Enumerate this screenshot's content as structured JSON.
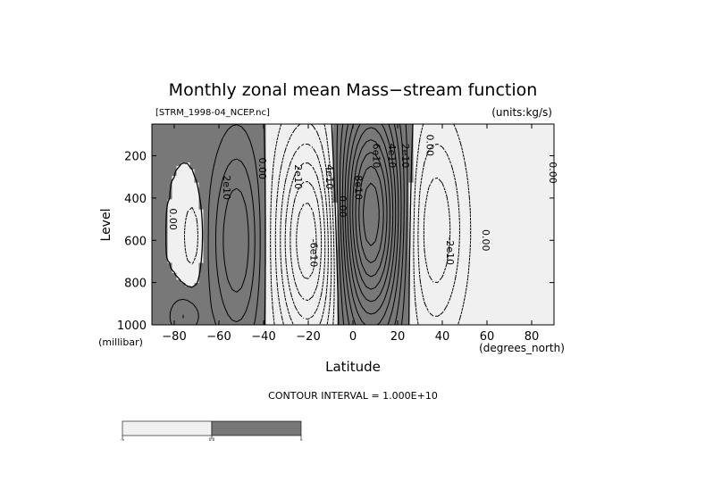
{
  "chart_data": {
    "type": "contour",
    "title": "Monthly zonal mean Mass−stream function",
    "file_label": "[STRM_1998-04_NCEP.nc]",
    "units_label": "(units:kg/s)",
    "xlabel": "Latitude",
    "x_units": "(degrees_north)",
    "ylabel": "Level",
    "y_units": "(millibar)",
    "xlim": [
      -90,
      90
    ],
    "ylim": [
      1000,
      50
    ],
    "x_ticks": [
      -80,
      -60,
      -40,
      -20,
      0,
      20,
      40,
      60,
      80
    ],
    "x_tick_labels": [
      "−80",
      "−60",
      "−40",
      "−20",
      "0",
      "20",
      "40",
      "60",
      "80"
    ],
    "y_ticks": [
      200,
      400,
      600,
      800,
      1000
    ],
    "y_tick_labels": [
      "200",
      "400",
      "600",
      "800",
      "1000"
    ],
    "contour_interval_text": "CONTOUR INTERVAL = 1.000E+10",
    "contour_interval": 10000000000.0,
    "cells": [
      {
        "lat_center": -72,
        "lev_center": 580,
        "amp": -20000000000.0,
        "rlat": 3,
        "rlev": 130
      },
      {
        "lat_center": -52,
        "lev_center": 600,
        "amp": 40000000000.0,
        "rlat": 8,
        "rlev": 330
      },
      {
        "lat_center": -20,
        "lev_center": 600,
        "amp": -70000000000.0,
        "rlat": 10,
        "rlev": 360
      },
      {
        "lat_center": 8,
        "lev_center": 480,
        "amp": 110000000000.0,
        "rlat": 10,
        "rlev": 380
      },
      {
        "lat_center": 36,
        "lev_center": 550,
        "amp": -40000000000.0,
        "rlat": 10,
        "rlev": 360
      },
      {
        "lat_center": -76,
        "lev_center": 960,
        "amp": 20000000000.0,
        "rlat": 5,
        "rlev": 70
      }
    ],
    "contour_labels": [
      {
        "text": "0.00",
        "lat": -82,
        "lev": 500
      },
      {
        "text": "2e10",
        "lat": -58,
        "lev": 350
      },
      {
        "text": "0.00",
        "lat": -42,
        "lev": 260
      },
      {
        "text": "2e10",
        "lat": -26,
        "lev": 300
      },
      {
        "text": "4e10",
        "lat": -12,
        "lev": 300
      },
      {
        "text": "-6e10",
        "lat": -19,
        "lev": 660
      },
      {
        "text": "0.00",
        "lat": -6,
        "lev": 440
      },
      {
        "text": "8e10",
        "lat": 1,
        "lev": 350
      },
      {
        "text": "6e10",
        "lat": 9,
        "lev": 200
      },
      {
        "text": "4e10",
        "lat": 16,
        "lev": 200
      },
      {
        "text": "2e10",
        "lat": 22,
        "lev": 200
      },
      {
        "text": "0.00",
        "lat": 33,
        "lev": 150
      },
      {
        "text": "-2e10",
        "lat": 42,
        "lev": 650
      },
      {
        "text": "0.00",
        "lat": 58,
        "lev": 600
      },
      {
        "text": "0.00",
        "lat": 88,
        "lev": 280
      }
    ],
    "shading": {
      "colors": [
        "#f0f0f0",
        "#787878"
      ],
      "colorbar_labels": [
        "-∞",
        "0.0",
        "∞"
      ],
      "meaning": "light = negative, dark = positive"
    },
    "grid": false,
    "legend": "colorbar bottom-left"
  }
}
